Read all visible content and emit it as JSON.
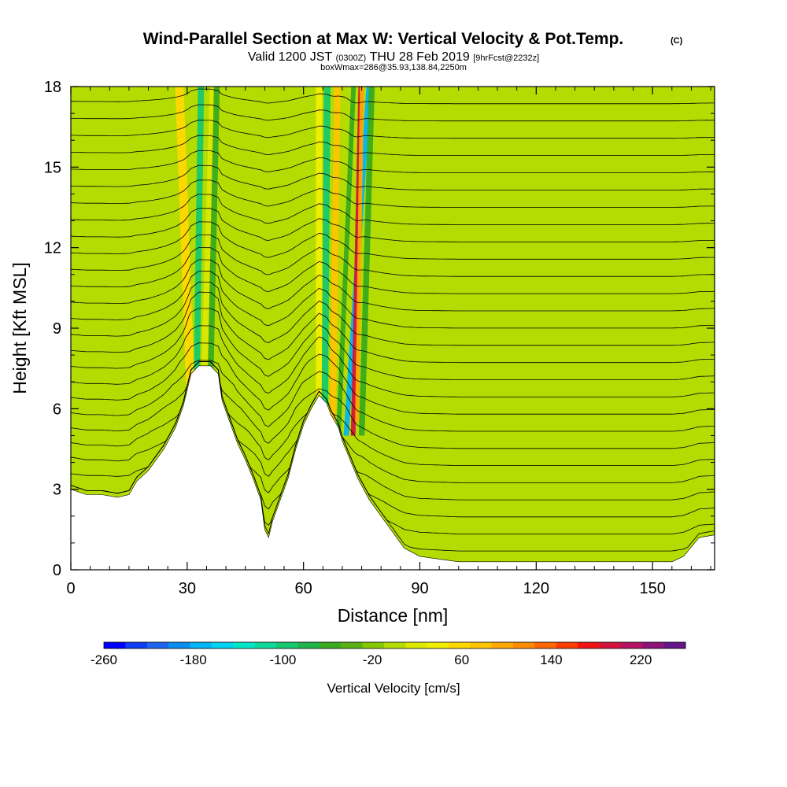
{
  "chart_data": {
    "type": "heatmap",
    "title": "Wind-Parallel Section at Max W: Vertical Velocity & Pot.Temp.",
    "title_mark": "(C)",
    "subtitle_parts": [
      "Valid 1200 JST",
      "(0300Z)",
      "THU 28 Feb 2019",
      "[9hrFcst@2232z]"
    ],
    "subtitle2": "boxWmax=286@35.93,138.84,2250m",
    "xlabel": "Distance [nm]",
    "ylabel": "Height [Kft MSL]",
    "xlim": [
      0,
      166
    ],
    "ylim": [
      0,
      18
    ],
    "x_ticks": [
      "0",
      "30",
      "60",
      "90",
      "120",
      "150"
    ],
    "y_ticks": [
      "0",
      "3",
      "6",
      "9",
      "12",
      "15",
      "18"
    ],
    "x_tick_values": [
      0,
      30,
      60,
      90,
      120,
      150
    ],
    "y_tick_values": [
      0,
      3,
      6,
      9,
      12,
      15,
      18
    ],
    "terrain": [
      [
        0,
        3.0
      ],
      [
        4,
        2.8
      ],
      [
        8,
        2.8
      ],
      [
        12,
        2.7
      ],
      [
        15,
        2.8
      ],
      [
        17,
        3.3
      ],
      [
        20,
        3.7
      ],
      [
        24,
        4.5
      ],
      [
        27,
        5.3
      ],
      [
        29,
        6.1
      ],
      [
        31,
        7.3
      ],
      [
        33,
        7.6
      ],
      [
        36,
        7.6
      ],
      [
        38,
        7.3
      ],
      [
        39,
        6.3
      ],
      [
        41,
        5.5
      ],
      [
        43,
        4.7
      ],
      [
        45,
        4.1
      ],
      [
        47,
        3.4
      ],
      [
        49,
        2.6
      ],
      [
        50,
        1.5
      ],
      [
        51,
        1.2
      ],
      [
        52,
        1.8
      ],
      [
        54,
        2.6
      ],
      [
        56,
        3.4
      ],
      [
        58,
        4.5
      ],
      [
        60,
        5.4
      ],
      [
        62,
        6.0
      ],
      [
        64,
        6.5
      ],
      [
        66,
        6.2
      ],
      [
        67,
        5.8
      ],
      [
        69,
        5.3
      ],
      [
        70,
        4.8
      ],
      [
        72,
        4.1
      ],
      [
        74,
        3.4
      ],
      [
        77,
        2.6
      ],
      [
        80,
        2.0
      ],
      [
        83,
        1.4
      ],
      [
        86,
        0.8
      ],
      [
        90,
        0.5
      ],
      [
        95,
        0.4
      ],
      [
        100,
        0.3
      ],
      [
        120,
        0.3
      ],
      [
        140,
        0.3
      ],
      [
        150,
        0.3
      ],
      [
        155,
        0.3
      ],
      [
        158,
        0.5
      ],
      [
        162,
        1.2
      ],
      [
        166,
        1.3
      ]
    ],
    "velocity_features": [
      {
        "x": 31.0,
        "ybot": 6.0,
        "width": 2.2,
        "value": 60,
        "tilt": -0.25
      },
      {
        "x": 32.5,
        "ybot": 7.3,
        "width": 1.6,
        "value": -100,
        "tilt": 0.1
      },
      {
        "x": 34.5,
        "ybot": 7.0,
        "width": 1.8,
        "value": 20,
        "tilt": 0.2
      },
      {
        "x": 36.0,
        "ybot": 7.0,
        "width": 1.5,
        "value": -60,
        "tilt": 0.15
      },
      {
        "x": 64.0,
        "ybot": 6.0,
        "width": 1.6,
        "value": 50,
        "tilt": 0.0
      },
      {
        "x": 65.5,
        "ybot": 6.0,
        "width": 1.7,
        "value": -100,
        "tilt": 0.05
      },
      {
        "x": 67.5,
        "ybot": 5.5,
        "width": 1.6,
        "value": 80,
        "tilt": 0.1
      },
      {
        "x": 69.0,
        "ybot": 5.0,
        "width": 1.2,
        "value": -60,
        "tilt": 0.3
      },
      {
        "x": 71.0,
        "ybot": 5.0,
        "width": 1.3,
        "value": -180,
        "tilt": 0.45
      },
      {
        "x": 72.8,
        "ybot": 5.0,
        "width": 1.2,
        "value": 200,
        "tilt": 0.15
      },
      {
        "x": 73.8,
        "ybot": 5.5,
        "width": 1.0,
        "value": 100,
        "tilt": 0.1
      },
      {
        "x": 75.0,
        "ybot": 5.0,
        "width": 1.5,
        "value": -60,
        "tilt": 0.2
      }
    ],
    "background_value": 0,
    "theta_contour_count": 28
  },
  "colorbar": {
    "label": "Vertical Velocity [cm/s]",
    "tick_labels": [
      "-260",
      "-180",
      "-100",
      "-20",
      "60",
      "140",
      "220"
    ],
    "tick_values": [
      -260,
      -180,
      -100,
      -20,
      60,
      140,
      220
    ],
    "min": -260,
    "max": 260,
    "bin_width": 20,
    "colors": [
      "#0000ff",
      "#0f3cf5",
      "#1e64ef",
      "#0b8cf1",
      "#00b4f5",
      "#00d2f0",
      "#05e6c8",
      "#10d89a",
      "#19c86e",
      "#22b44a",
      "#3aaa1e",
      "#5ab014",
      "#86c800",
      "#b4dc00",
      "#dce800",
      "#f2ee00",
      "#ffd800",
      "#ffc400",
      "#ffa800",
      "#ff8c00",
      "#ff6800",
      "#ff3c00",
      "#f01414",
      "#d2143c",
      "#b41464",
      "#8c1478",
      "#641488"
    ]
  }
}
